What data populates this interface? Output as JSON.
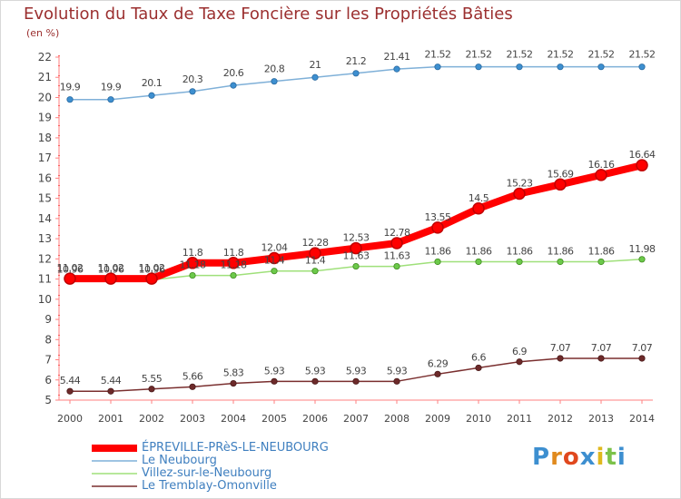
{
  "chart_data": {
    "type": "line",
    "title": "Evolution du Taux de Taxe Foncière sur les Propriétés Bâties",
    "ylabel": "(en %)",
    "xlabel": "",
    "categories": [
      "2000",
      "2001",
      "2002",
      "2003",
      "2004",
      "2005",
      "2006",
      "2007",
      "2008",
      "2009",
      "2010",
      "2011",
      "2012",
      "2013",
      "2014"
    ],
    "ylim": [
      5,
      22
    ],
    "yticks": [
      5,
      6,
      7,
      8,
      9,
      10,
      11,
      12,
      13,
      14,
      15,
      16,
      17,
      18,
      19,
      20,
      21,
      22
    ],
    "grid": false,
    "legend_position": "bottom-left",
    "series": [
      {
        "name": "ÉPREVILLE-PRèS-LE-NEUBOURG",
        "color": "#ff0000",
        "marker_color": "#ff0000",
        "values": [
          11.02,
          11.02,
          11.02,
          11.8,
          11.8,
          12.04,
          12.28,
          12.53,
          12.78,
          13.55,
          14.5,
          15.23,
          15.69,
          16.16,
          16.64
        ],
        "labels": [
          "11.02",
          "11.02",
          "11.02",
          "11.8",
          "11.8",
          "12.04",
          "12.28",
          "12.53",
          "12.78",
          "13.55",
          "14.5",
          "15.23",
          "15.69",
          "16.16",
          "16.64"
        ]
      },
      {
        "name": "Le Neubourg",
        "color": "#7fb0d8",
        "marker_color": "#3d8fd0",
        "values": [
          19.9,
          19.9,
          20.1,
          20.3,
          20.6,
          20.8,
          21,
          21.2,
          21.41,
          21.52,
          21.52,
          21.52,
          21.52,
          21.52,
          21.52
        ],
        "labels": [
          "19.9",
          "19.9",
          "20.1",
          "20.3",
          "20.6",
          "20.8",
          "21",
          "21.2",
          "21.41",
          "21.52",
          "21.52",
          "21.52",
          "21.52",
          "21.52",
          "21.52"
        ]
      },
      {
        "name": "Villez-sur-le-Neubourg",
        "color": "#9fe07a",
        "marker_color": "#6cc94a",
        "values": [
          10.96,
          10.96,
          10.96,
          11.18,
          11.18,
          11.4,
          11.4,
          11.63,
          11.63,
          11.86,
          11.86,
          11.86,
          11.86,
          11.86,
          11.98
        ],
        "labels": [
          "10.96",
          "10.96",
          "10.96",
          "11.18",
          "11.18",
          "11.4",
          "11.4",
          "11.63",
          "11.63",
          "11.86",
          "11.86",
          "11.86",
          "11.86",
          "11.86",
          "11.98"
        ]
      },
      {
        "name": "Le Tremblay-Omonville",
        "color": "#7a2f2f",
        "marker_color": "#6d2a2a",
        "values": [
          5.44,
          5.44,
          5.55,
          5.66,
          5.83,
          5.93,
          5.93,
          5.93,
          5.93,
          6.29,
          6.6,
          6.9,
          7.07,
          7.07,
          7.07
        ],
        "labels": [
          "5.44",
          "5.44",
          "5.55",
          "5.66",
          "5.83",
          "5.93",
          "5.93",
          "5.93",
          "5.93",
          "6.29",
          "6.6",
          "6.9",
          "7.07",
          "7.07",
          "7.07"
        ]
      }
    ]
  },
  "branding": {
    "letters": [
      "P",
      "r",
      "o",
      "x",
      "i",
      "t",
      "i"
    ],
    "letter_colors": [
      "#3d8fd0",
      "#e08a1e",
      "#e0481e",
      "#3d8fd0",
      "#e0b81e",
      "#7cc24a",
      "#3d8fd0"
    ]
  }
}
